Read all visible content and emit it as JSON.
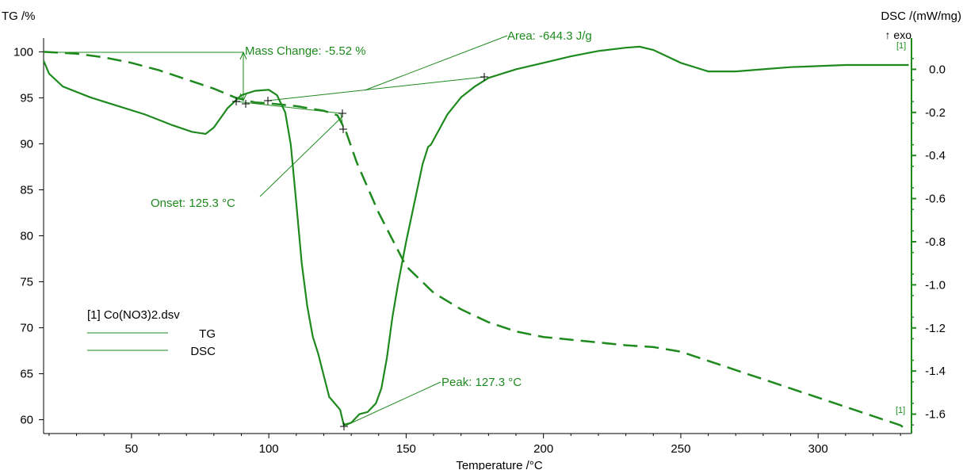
{
  "colors": {
    "series": "#1e8a1e",
    "annotation": "#1e8a1e",
    "axis": "#000000",
    "right_axis": "#1e8a1e",
    "background": "#ffffff"
  },
  "chart_data": {
    "type": "line",
    "xlabel": "Temperature /°C",
    "y1label": "TG /%",
    "y2label": "DSC /(mW/mg)",
    "y2_direction": "↑ exo",
    "xlim": [
      18,
      334
    ],
    "y1lim": [
      58.5,
      101.5
    ],
    "y2lim": [
      -1.69,
      0.145
    ],
    "x_ticks": [
      50,
      100,
      150,
      200,
      250,
      300
    ],
    "y1_ticks": [
      60,
      65,
      70,
      75,
      80,
      85,
      90,
      95,
      100
    ],
    "y2_ticks": [
      -1.6,
      -1.4,
      -1.2,
      -1.0,
      -0.8,
      -0.6,
      -0.4,
      -0.2,
      0.0
    ],
    "y2_tick_labels": [
      "-1.6",
      "-1.4",
      "-1.2",
      "-1.0",
      "-0.8",
      "-0.6",
      "-0.4",
      "-0.2",
      "0.0"
    ],
    "legend": {
      "file": "[1] Co(NO3)2.dsv",
      "entries": [
        "TG",
        "DSC"
      ],
      "position": "bottom-left"
    },
    "curve_marker": "[1]",
    "series": [
      {
        "name": "TG",
        "axis": "left",
        "style": "dashed",
        "x": [
          18,
          30,
          40,
          50,
          60,
          70,
          80,
          88,
          95,
          100,
          110,
          120,
          125,
          128,
          132,
          140,
          150,
          160,
          170,
          180,
          190,
          200,
          210,
          220,
          230,
          240,
          250,
          260,
          270,
          280,
          290,
          300,
          310,
          320,
          330,
          333
        ],
        "y": [
          100.0,
          99.8,
          99.4,
          98.8,
          98.0,
          97.0,
          96.0,
          95.0,
          94.5,
          94.4,
          94.1,
          93.6,
          93.1,
          91.4,
          88.0,
          82.5,
          76.7,
          73.8,
          72.0,
          70.6,
          69.6,
          69.0,
          68.7,
          68.4,
          68.1,
          67.9,
          67.4,
          66.4,
          65.4,
          64.4,
          63.4,
          62.4,
          61.4,
          60.4,
          59.4,
          58.8
        ]
      },
      {
        "name": "DSC",
        "axis": "right",
        "style": "solid",
        "x": [
          18,
          20,
          25,
          35,
          45,
          55,
          65,
          72,
          77,
          80,
          85,
          90,
          95,
          100,
          103,
          106,
          108,
          110,
          112,
          114,
          116,
          118,
          120,
          122,
          124,
          126,
          127.3,
          130,
          133,
          136,
          139,
          141,
          143,
          145,
          147,
          150,
          153,
          156,
          158,
          159,
          162,
          165,
          170,
          175,
          180,
          190,
          200,
          210,
          220,
          230,
          235,
          240,
          245,
          250,
          260,
          270,
          280,
          290,
          300,
          310,
          320,
          330,
          333
        ],
        "y": [
          0.04,
          -0.02,
          -0.08,
          -0.13,
          -0.17,
          -0.21,
          -0.26,
          -0.29,
          -0.3,
          -0.27,
          -0.18,
          -0.12,
          -0.1,
          -0.095,
          -0.12,
          -0.2,
          -0.35,
          -0.62,
          -0.9,
          -1.1,
          -1.24,
          -1.32,
          -1.42,
          -1.52,
          -1.55,
          -1.58,
          -1.65,
          -1.64,
          -1.6,
          -1.59,
          -1.55,
          -1.48,
          -1.34,
          -1.15,
          -1.0,
          -0.8,
          -0.62,
          -0.44,
          -0.36,
          -0.35,
          -0.28,
          -0.21,
          -0.13,
          -0.08,
          -0.04,
          0.0,
          0.03,
          0.06,
          0.085,
          0.1,
          0.105,
          0.09,
          0.06,
          0.03,
          -0.01,
          -0.01,
          0.0,
          0.01,
          0.015,
          0.02,
          0.02,
          0.02,
          0.02
        ]
      }
    ],
    "annotations": {
      "mass_change": "Mass Change: -5.52 %",
      "area": "Area: -644.3 J/g",
      "onset": "Onset: 125.3 °C",
      "peak": "Peak: 127.3 °C"
    }
  }
}
